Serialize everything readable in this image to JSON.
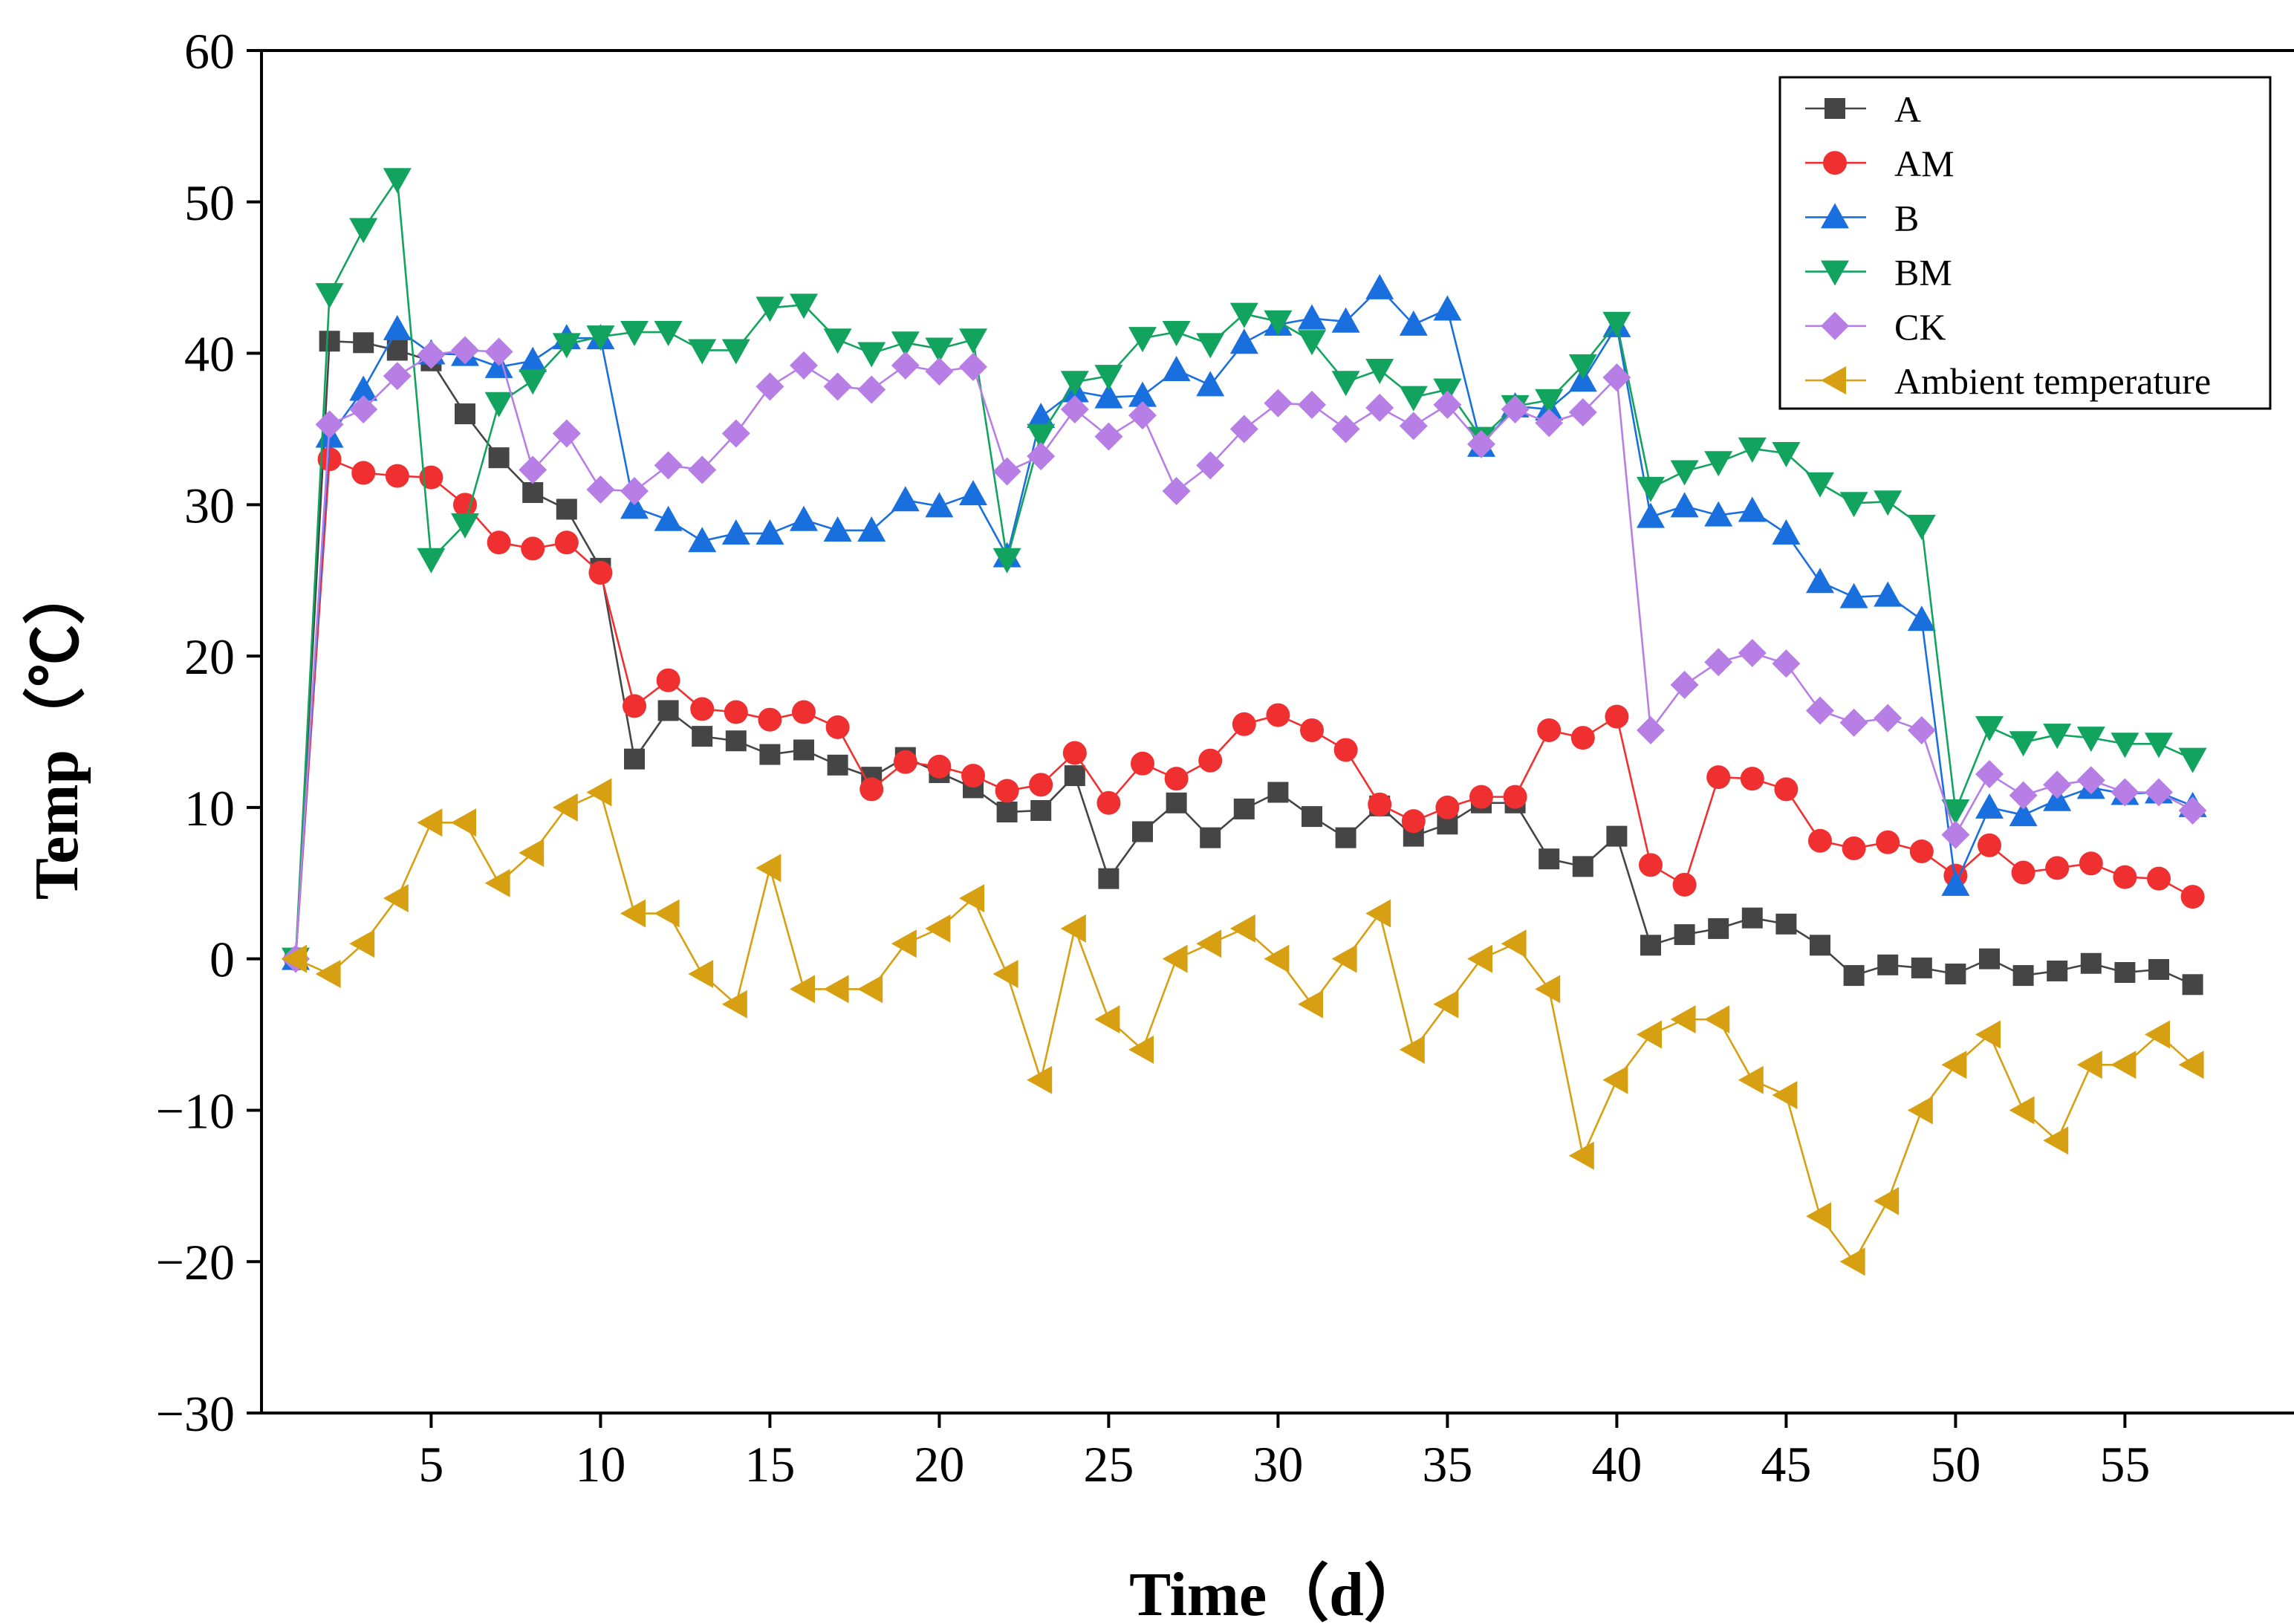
{
  "chart_data": {
    "type": "line",
    "title": "",
    "xlabel": "Time（d）",
    "ylabel": "Temp（℃）",
    "xlim": [
      0,
      60
    ],
    "ylim": [
      -30,
      60
    ],
    "xticks": [
      5,
      10,
      15,
      20,
      25,
      30,
      35,
      40,
      45,
      50,
      55
    ],
    "yticks": [
      -30,
      -20,
      -10,
      0,
      10,
      20,
      30,
      40,
      50,
      60
    ],
    "ytick_labels": [
      "−30",
      "−20",
      "−10",
      "0",
      "10",
      "20",
      "30",
      "40",
      "50",
      "60"
    ],
    "legend_position": "top-right",
    "grid": false,
    "x": [
      1,
      2,
      3,
      4,
      5,
      6,
      7,
      8,
      9,
      10,
      11,
      12,
      13,
      14,
      15,
      16,
      17,
      18,
      19,
      20,
      21,
      22,
      23,
      24,
      25,
      26,
      27,
      28,
      29,
      30,
      31,
      32,
      33,
      34,
      35,
      36,
      37,
      38,
      39,
      40,
      41,
      42,
      43,
      44,
      45,
      46,
      47,
      48,
      49,
      50,
      51,
      52,
      53,
      54,
      55,
      56,
      57
    ],
    "series": [
      {
        "name": "A",
        "color": "#454545",
        "marker": "square",
        "values": [
          0,
          40.8,
          40.7,
          40.2,
          39.5,
          36,
          33.1,
          30.8,
          29.7,
          25.8,
          13.2,
          16.4,
          14.7,
          14.4,
          13.5,
          13.8,
          12.8,
          12,
          13.3,
          12.3,
          11.3,
          9.7,
          9.8,
          12.1,
          5.3,
          8.4,
          10.3,
          8,
          9.9,
          11,
          9.4,
          8,
          10.1,
          8.1,
          8.9,
          10.3,
          10.3,
          6.6,
          6.1,
          8.1,
          0.9,
          1.6,
          2,
          2.7,
          2.3,
          0.9,
          -1.1,
          -0.4,
          -0.6,
          -1,
          0,
          -1.1,
          -0.8,
          -0.3,
          -0.9,
          -0.7,
          -1.7
        ]
      },
      {
        "name": "AM",
        "color": "#f03030",
        "marker": "circle",
        "values": [
          0,
          33,
          32.1,
          31.9,
          31.8,
          30,
          27.5,
          27.1,
          27.5,
          25.5,
          16.7,
          18.4,
          16.5,
          16.3,
          15.8,
          16.3,
          15.3,
          11.2,
          13,
          12.7,
          12.1,
          11.1,
          11.5,
          13.6,
          10.3,
          12.9,
          11.9,
          13.1,
          15.5,
          16.1,
          15.1,
          13.8,
          10.2,
          9.1,
          10,
          10.7,
          10.7,
          15.1,
          14.6,
          16,
          6.2,
          4.9,
          12,
          11.9,
          11.2,
          7.8,
          7.3,
          7.7,
          7.1,
          5.5,
          7.5,
          5.7,
          6,
          6.3,
          5.4,
          5.3,
          4.1
        ]
      },
      {
        "name": "B",
        "color": "#1a6fdf",
        "marker": "triangle-up",
        "values": [
          0,
          34.5,
          37.6,
          41.6,
          40,
          39.9,
          39.1,
          39.5,
          41,
          41,
          29.8,
          29,
          27.6,
          28.1,
          28.1,
          29,
          28.3,
          28.3,
          30.3,
          29.9,
          30.7,
          26.6,
          35.8,
          37.5,
          37.1,
          37.2,
          38.9,
          37.9,
          40.7,
          41.9,
          42.3,
          42.1,
          44.3,
          41.9,
          42.9,
          33.9,
          36.5,
          36.3,
          38.2,
          41.8,
          29.2,
          29.9,
          29.3,
          29.6,
          28.1,
          24.9,
          23.9,
          24,
          22.4,
          4.9,
          10,
          9.5,
          10.5,
          11.3,
          10.9,
          11,
          10.1
        ]
      },
      {
        "name": "BM",
        "color": "#12a35e",
        "marker": "triangle-down",
        "values": [
          0,
          43.9,
          48.2,
          51.5,
          26.4,
          28.7,
          36.7,
          38.2,
          40.6,
          41.1,
          41.4,
          41.4,
          40.2,
          40.2,
          43,
          43.2,
          40.9,
          40,
          40.7,
          40.3,
          40.9,
          26.4,
          34.6,
          38.1,
          38.5,
          41,
          41.4,
          40.6,
          42.6,
          42.1,
          40.8,
          38.1,
          38.9,
          37.1,
          37.6,
          34.4,
          36.5,
          36.9,
          39.2,
          42,
          31.1,
          32.2,
          32.8,
          33.7,
          33.4,
          31.4,
          30.1,
          30.2,
          28.6,
          9.8,
          15.3,
          14.3,
          14.8,
          14.6,
          14.2,
          14.2,
          13.2
        ]
      },
      {
        "name": "CK",
        "color": "#b77fe6",
        "marker": "diamond",
        "values": [
          0,
          35.3,
          36.3,
          38.5,
          39.9,
          40.2,
          40.1,
          32.3,
          34.7,
          31,
          30.9,
          32.6,
          32.3,
          34.7,
          37.8,
          39.2,
          37.8,
          37.6,
          39.2,
          38.8,
          39.1,
          32.2,
          33.2,
          36.3,
          34.5,
          35.9,
          30.9,
          32.6,
          35,
          36.7,
          36.6,
          35,
          36.4,
          35.2,
          36.6,
          34,
          36.3,
          35.4,
          36.1,
          38.4,
          15.1,
          18.1,
          19.6,
          20.2,
          19.5,
          16.4,
          15.6,
          15.9,
          15.1,
          8.2,
          12.2,
          10.8,
          11.5,
          11.8,
          11,
          11,
          9.8
        ]
      },
      {
        "name": "Ambient temperature",
        "color": "#d6a012",
        "marker": "triangle-left",
        "values": [
          0,
          -1,
          1,
          4,
          9,
          9,
          5,
          7,
          10,
          11,
          3,
          3,
          -1,
          -3,
          6,
          -2,
          -2,
          -2,
          1,
          2,
          4,
          -1,
          -8,
          2,
          -4,
          -6,
          0,
          1,
          2,
          0,
          -3,
          0,
          3,
          -6,
          -3,
          0,
          1,
          -2,
          -13,
          -8,
          -5,
          -4,
          -4,
          -8,
          -9,
          -17,
          -20,
          -16,
          -10,
          -7,
          -5,
          -10,
          -12,
          -7,
          -7,
          -5,
          -7
        ]
      }
    ]
  }
}
